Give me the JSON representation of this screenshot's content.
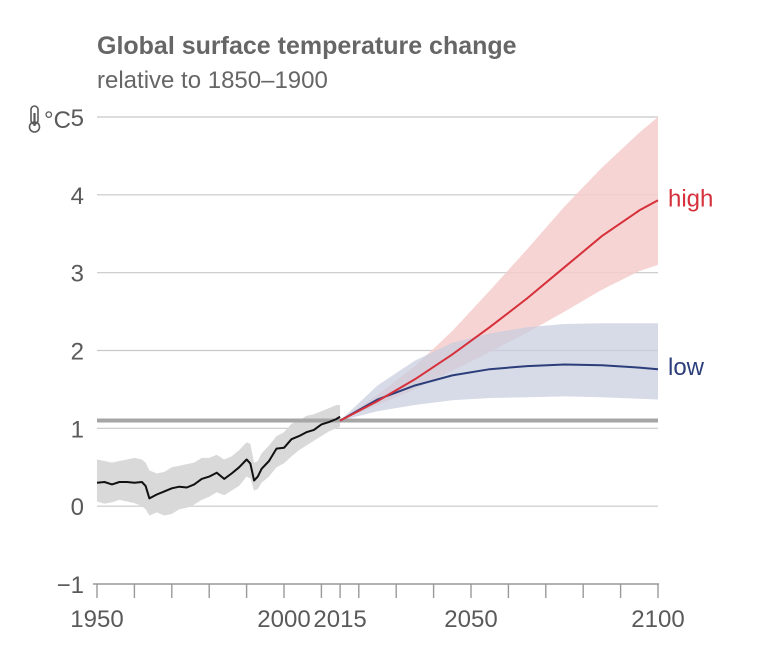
{
  "colors": {
    "title": "#666666",
    "axis_text": "#5a5a5a",
    "gridline": "#c8c8c8",
    "axis_line": "#999999",
    "reference_line": "#a6a6a6",
    "observed_line": "#111111",
    "observed_band": "#d9d9d9",
    "high": "#d6303a",
    "high_band": "#f4cccc",
    "low": "#2c3e7a",
    "low_band": "#c9cddf"
  },
  "chart_data": {
    "type": "line",
    "title": "Global surface temperature change",
    "subtitle": "relative to 1850–1900",
    "ylabel": "°C",
    "y_unit_icon": "thermometer-icon",
    "xlim": [
      1950,
      2100
    ],
    "ylim": [
      -1,
      5
    ],
    "y_ticks": [
      -1,
      0,
      1,
      2,
      3,
      4,
      5
    ],
    "y_tick_labels": [
      "−1",
      "0",
      "1",
      "2",
      "3",
      "4",
      "5"
    ],
    "x_tick_labels": [
      {
        "value": 1950,
        "label": "1950"
      },
      {
        "value": 2000,
        "label": "2000"
      },
      {
        "value": 2015,
        "label": "2015"
      },
      {
        "value": 2050,
        "label": "2050"
      },
      {
        "value": 2100,
        "label": "2100"
      }
    ],
    "x_minor_ticks": [
      1950,
      1960,
      1970,
      1980,
      1990,
      2000,
      2010,
      2015,
      2020,
      2030,
      2040,
      2050,
      2060,
      2070,
      2080,
      2090,
      2100
    ],
    "grid": true,
    "reference_line": {
      "y": 1.1
    },
    "observed": {
      "x": [
        1950,
        1952,
        1954,
        1956,
        1958,
        1960,
        1962,
        1963,
        1964,
        1966,
        1968,
        1970,
        1972,
        1974,
        1976,
        1978,
        1980,
        1982,
        1984,
        1986,
        1988,
        1990,
        1991,
        1992,
        1993,
        1994,
        1996,
        1998,
        2000,
        2002,
        2004,
        2006,
        2008,
        2010,
        2012,
        2014,
        2015
      ],
      "y": [
        0.3,
        0.31,
        0.28,
        0.31,
        0.31,
        0.3,
        0.31,
        0.26,
        0.1,
        0.15,
        0.19,
        0.23,
        0.25,
        0.24,
        0.28,
        0.35,
        0.38,
        0.43,
        0.35,
        0.42,
        0.5,
        0.6,
        0.55,
        0.33,
        0.38,
        0.48,
        0.58,
        0.74,
        0.75,
        0.86,
        0.9,
        0.95,
        0.98,
        1.05,
        1.08,
        1.12,
        1.15
      ],
      "lower": [
        0.06,
        0.03,
        0.05,
        0.08,
        0.06,
        0.04,
        0.0,
        -0.04,
        -0.12,
        -0.08,
        -0.12,
        -0.1,
        -0.04,
        -0.02,
        0.02,
        0.08,
        0.12,
        0.18,
        0.14,
        0.2,
        0.26,
        0.38,
        0.36,
        0.2,
        0.22,
        0.3,
        0.38,
        0.5,
        0.55,
        0.64,
        0.72,
        0.78,
        0.84,
        0.9,
        0.96,
        1.0,
        1.02
      ],
      "upper": [
        0.6,
        0.58,
        0.56,
        0.58,
        0.6,
        0.62,
        0.6,
        0.56,
        0.46,
        0.42,
        0.44,
        0.5,
        0.52,
        0.54,
        0.56,
        0.62,
        0.62,
        0.66,
        0.6,
        0.64,
        0.72,
        0.82,
        0.8,
        0.56,
        0.58,
        0.68,
        0.78,
        0.9,
        0.95,
        1.06,
        1.1,
        1.16,
        1.18,
        1.22,
        1.26,
        1.3,
        1.3
      ]
    },
    "series": [
      {
        "name": "high",
        "x": [
          2015,
          2025,
          2035,
          2045,
          2055,
          2065,
          2075,
          2085,
          2095,
          2100
        ],
        "y": [
          1.1,
          1.35,
          1.63,
          1.95,
          2.3,
          2.67,
          3.07,
          3.47,
          3.8,
          3.93
        ],
        "lower": [
          1.1,
          1.3,
          1.5,
          1.74,
          1.98,
          2.23,
          2.5,
          2.78,
          3.02,
          3.1
        ],
        "upper": [
          1.1,
          1.43,
          1.8,
          2.25,
          2.77,
          3.3,
          3.85,
          4.35,
          4.8,
          5.0
        ]
      },
      {
        "name": "low",
        "x": [
          2015,
          2025,
          2035,
          2045,
          2055,
          2065,
          2075,
          2085,
          2095,
          2100
        ],
        "y": [
          1.1,
          1.37,
          1.55,
          1.68,
          1.76,
          1.8,
          1.82,
          1.81,
          1.78,
          1.76
        ],
        "lower": [
          1.1,
          1.22,
          1.3,
          1.36,
          1.39,
          1.4,
          1.41,
          1.4,
          1.38,
          1.37
        ],
        "upper": [
          1.1,
          1.55,
          1.87,
          2.1,
          2.22,
          2.3,
          2.34,
          2.35,
          2.35,
          2.35
        ]
      }
    ]
  }
}
